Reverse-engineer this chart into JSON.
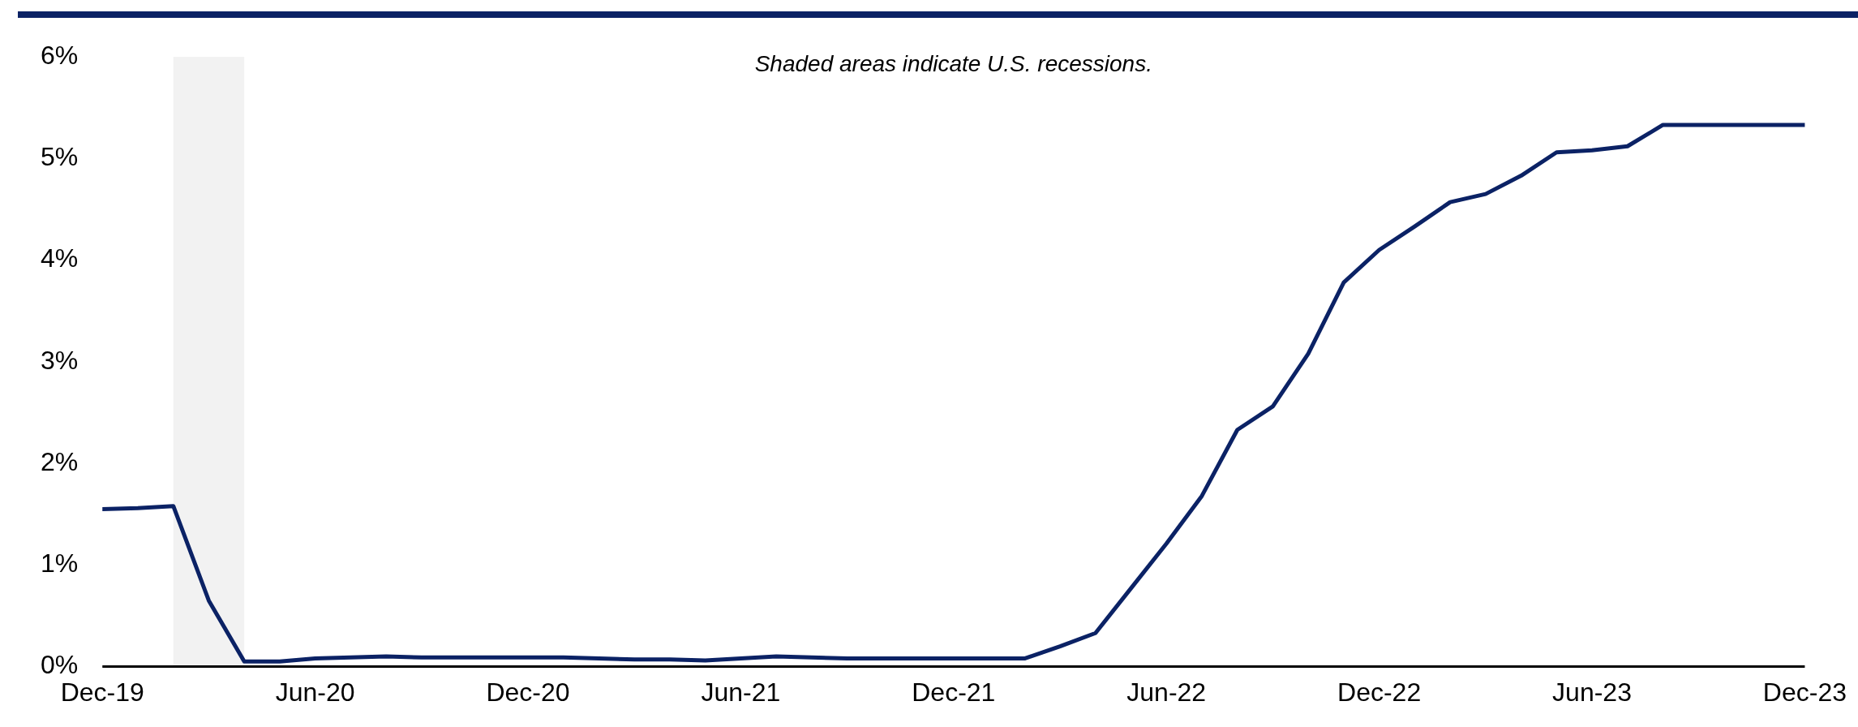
{
  "chart_data": {
    "type": "line",
    "annotations": [
      "Shaded areas indicate U.S. recessions."
    ],
    "x": [
      "2019-12",
      "2020-01",
      "2020-02",
      "2020-03",
      "2020-04",
      "2020-05",
      "2020-06",
      "2020-07",
      "2020-08",
      "2020-09",
      "2020-10",
      "2020-11",
      "2020-12",
      "2021-01",
      "2021-02",
      "2021-03",
      "2021-04",
      "2021-05",
      "2021-06",
      "2021-07",
      "2021-08",
      "2021-09",
      "2021-10",
      "2021-11",
      "2021-12",
      "2022-01",
      "2022-02",
      "2022-03",
      "2022-04",
      "2022-05",
      "2022-06",
      "2022-07",
      "2022-08",
      "2022-09",
      "2022-10",
      "2022-11",
      "2022-12",
      "2023-01",
      "2023-02",
      "2023-03",
      "2023-04",
      "2023-05",
      "2023-06",
      "2023-07",
      "2023-08",
      "2023-09",
      "2023-10",
      "2023-11",
      "2023-12"
    ],
    "series": [
      {
        "color": "#0b2265",
        "values": [
          1.55,
          1.56,
          1.58,
          0.65,
          0.05,
          0.05,
          0.08,
          0.09,
          0.1,
          0.09,
          0.09,
          0.09,
          0.09,
          0.09,
          0.08,
          0.07,
          0.07,
          0.06,
          0.08,
          0.1,
          0.09,
          0.08,
          0.08,
          0.08,
          0.08,
          0.08,
          0.08,
          0.2,
          0.33,
          0.77,
          1.21,
          1.68,
          2.33,
          2.56,
          3.08,
          3.78,
          4.1,
          4.33,
          4.57,
          4.65,
          4.83,
          5.06,
          5.08,
          5.12,
          5.33,
          5.33,
          5.33,
          5.33,
          5.33
        ]
      }
    ],
    "xlim": [
      "2019-12",
      "2023-12"
    ],
    "xticks": [
      {
        "value": "2019-12",
        "label": "Dec-19"
      },
      {
        "value": "2020-06",
        "label": "Jun-20"
      },
      {
        "value": "2020-12",
        "label": "Dec-20"
      },
      {
        "value": "2021-06",
        "label": "Jun-21"
      },
      {
        "value": "2021-12",
        "label": "Dec-21"
      },
      {
        "value": "2022-06",
        "label": "Jun-22"
      },
      {
        "value": "2022-12",
        "label": "Dec-22"
      },
      {
        "value": "2023-06",
        "label": "Jun-23"
      },
      {
        "value": "2023-12",
        "label": "Dec-23"
      }
    ],
    "ylim": [
      0,
      6
    ],
    "yticks": [
      {
        "value": 0,
        "label": "0%"
      },
      {
        "value": 1,
        "label": "1%"
      },
      {
        "value": 2,
        "label": "2%"
      },
      {
        "value": 3,
        "label": "3%"
      },
      {
        "value": 4,
        "label": "4%"
      },
      {
        "value": 5,
        "label": "5%"
      },
      {
        "value": 6,
        "label": "6%"
      }
    ],
    "bands": [
      {
        "axis": "x",
        "from": "2020-02",
        "to": "2020-04",
        "color": "#f2f2f2"
      }
    ],
    "grid": false,
    "legend": false,
    "marker": "none",
    "line_style": "solid"
  }
}
